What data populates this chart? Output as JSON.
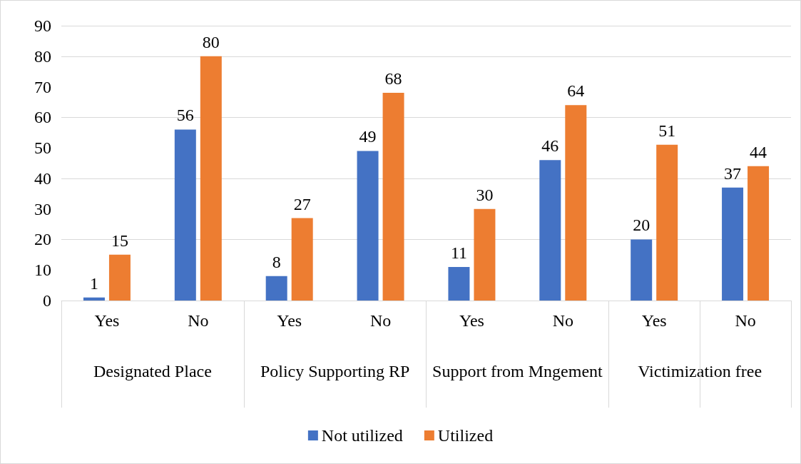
{
  "chart_data": {
    "type": "bar",
    "categories": [
      "Yes",
      "No",
      "Yes",
      "No",
      "Yes",
      "No",
      "Yes",
      "No"
    ],
    "series": [
      {
        "name": "Not utilized",
        "color": "#4472c4",
        "values": [
          1,
          56,
          8,
          49,
          11,
          46,
          20,
          37
        ]
      },
      {
        "name": "Utilized",
        "color": "#ed7d31",
        "values": [
          15,
          80,
          27,
          68,
          30,
          64,
          51,
          44
        ]
      }
    ],
    "annotations": [
      "Designated Place",
      "Policy Supporting RP",
      "Support from Mngement",
      "Victimization free"
    ],
    "ylim": [
      0,
      90
    ],
    "yticks": [
      0,
      10,
      20,
      30,
      40,
      50,
      60,
      70,
      80,
      90
    ],
    "grid": "y",
    "legend": "bottom",
    "data_labels": true
  }
}
